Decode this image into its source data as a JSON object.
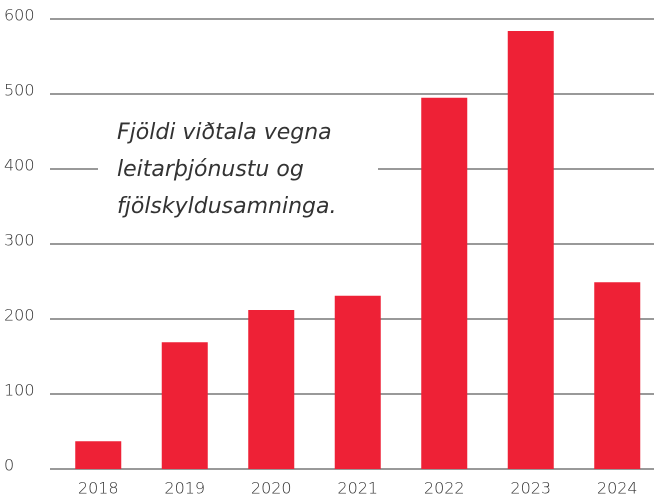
{
  "chart_data": {
    "type": "bar",
    "title_lines": [
      "Fjöldi viðtala vegna",
      "leitarþjónustu og",
      "fjölskyldusamninga."
    ],
    "categories": [
      "2018",
      "2019",
      "2020",
      "2021",
      "2022",
      "2023",
      "2024"
    ],
    "values": [
      37,
      169,
      212,
      231,
      495,
      584,
      249
    ],
    "color": "#ee2136",
    "ylim": [
      0,
      600
    ],
    "yticks": [
      0,
      100,
      200,
      300,
      400,
      500,
      600
    ],
    "grid": true
  }
}
